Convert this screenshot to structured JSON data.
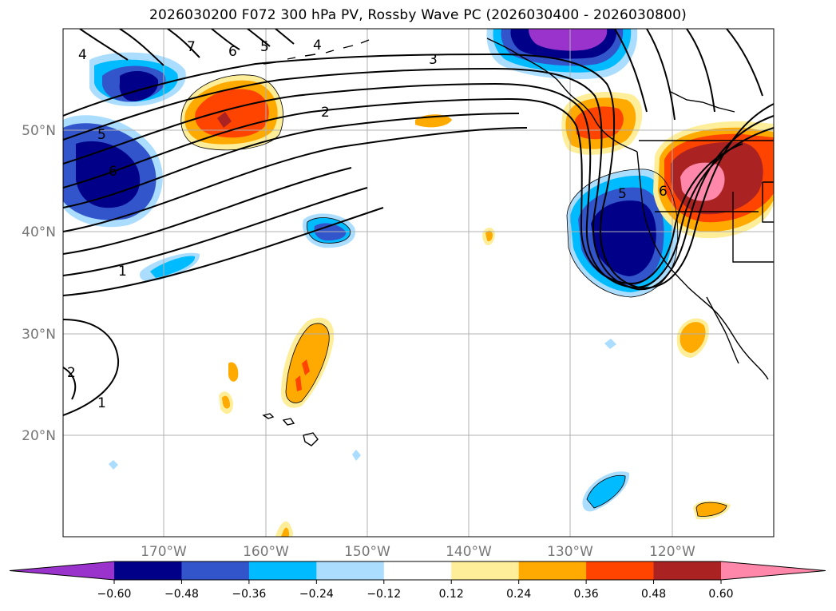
{
  "title": "2026030200 F072 300 hPa PV, Rossby Wave PC (2026030400 - 2026030800)",
  "latitude_labels": [
    "50°N",
    "40°N",
    "30°N",
    "20°N"
  ],
  "longitude_labels": [
    "170°W",
    "160°W",
    "150°W",
    "140°W",
    "130°W",
    "120°W"
  ],
  "colorbar": {
    "ticks": [
      "−0.60",
      "−0.48",
      "−0.36",
      "−0.24",
      "−0.12",
      "0.12",
      "0.24",
      "0.36",
      "0.48",
      "0.60"
    ],
    "colors": [
      "#9933cc",
      "#000088",
      "#3355cc",
      "#00bbff",
      "#aaddff",
      "#ffffff",
      "#ffee99",
      "#ffaa00",
      "#ff4400",
      "#aa2222",
      "#ff88aa"
    ]
  },
  "contour_labels": [
    "1",
    "1",
    "2",
    "2",
    "3",
    "4",
    "4",
    "5",
    "5",
    "5",
    "6",
    "6",
    "6",
    "7"
  ],
  "colors": {
    "strong_negative": "#000088",
    "strong_positive": "#aa2222",
    "peak_positive": "#ff88aa"
  }
}
